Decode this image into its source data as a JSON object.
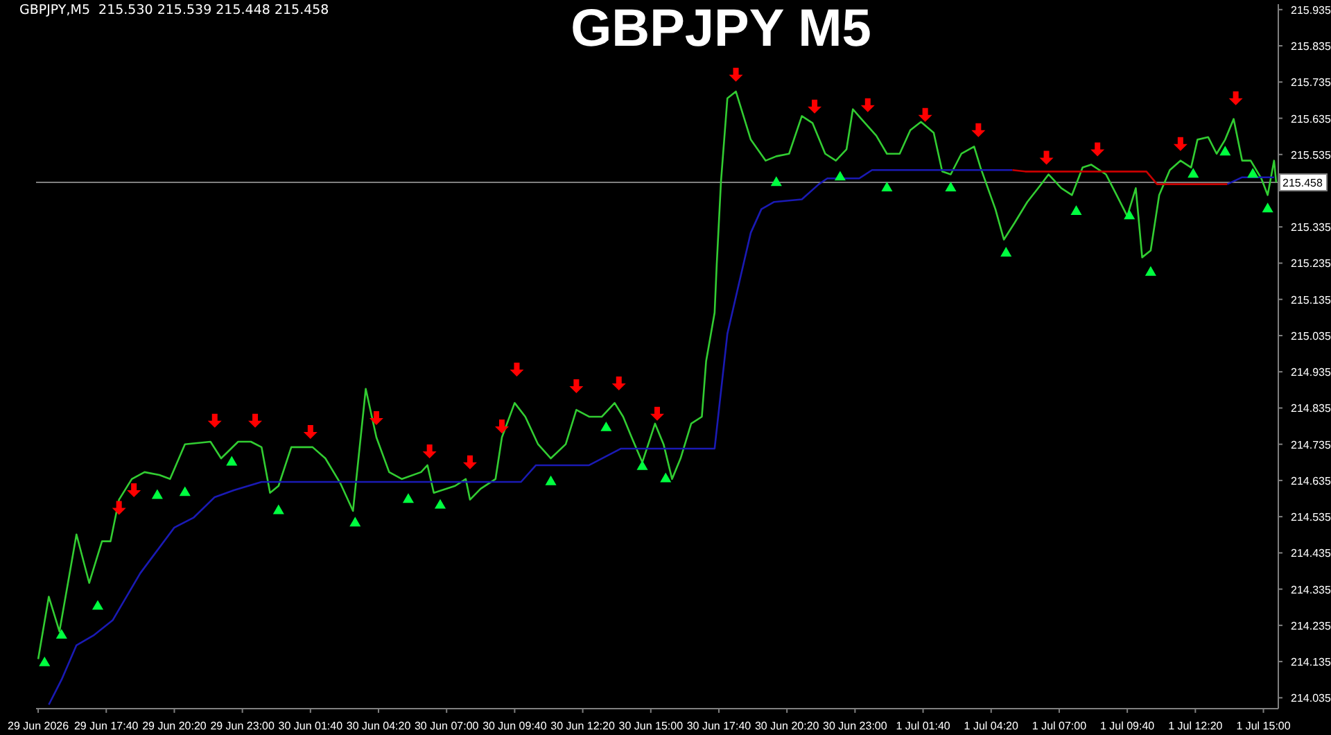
{
  "chart_data": {
    "type": "line",
    "title": "GBPJPY M5",
    "annotations": [
      "GBPJPY,M5  215.530 215.539 215.448 215.458"
    ],
    "xlim": [
      "2026-06-29T14:55",
      "2026-07-01T15:35"
    ],
    "xticks": [
      {
        "value": "2026-06-29T15:00",
        "label": "29 Jun 2026"
      },
      {
        "value": "2026-06-29T17:40",
        "label": "29 Jun 17:40"
      },
      {
        "value": "2026-06-29T20:20",
        "label": "29 Jun 20:20"
      },
      {
        "value": "2026-06-29T23:00",
        "label": "29 Jun 23:00"
      },
      {
        "value": "2026-06-30T01:40",
        "label": "30 Jun 01:40"
      },
      {
        "value": "2026-06-30T04:20",
        "label": "30 Jun 04:20"
      },
      {
        "value": "2026-06-30T07:00",
        "label": "30 Jun 07:00"
      },
      {
        "value": "2026-06-30T09:40",
        "label": "30 Jun 09:40"
      },
      {
        "value": "2026-06-30T12:20",
        "label": "30 Jun 12:20"
      },
      {
        "value": "2026-06-30T15:00",
        "label": "30 Jun 15:00"
      },
      {
        "value": "2026-06-30T17:40",
        "label": "30 Jun 17:40"
      },
      {
        "value": "2026-06-30T20:20",
        "label": "30 Jun 20:20"
      },
      {
        "value": "2026-06-30T23:00",
        "label": "30 Jun 23:00"
      },
      {
        "value": "2026-07-01T01:40",
        "label": "1 Jul 01:40"
      },
      {
        "value": "2026-07-01T04:20",
        "label": "1 Jul 04:20"
      },
      {
        "value": "2026-07-01T07:00",
        "label": "1 Jul 07:00"
      },
      {
        "value": "2026-07-01T09:40",
        "label": "1 Jul 09:40"
      },
      {
        "value": "2026-07-01T12:20",
        "label": "1 Jul 12:20"
      },
      {
        "value": "2026-07-01T15:00",
        "label": "1 Jul 15:00"
      }
    ],
    "ylim": [
      214.005,
      215.95
    ],
    "yticks": [
      214.035,
      214.135,
      214.235,
      214.335,
      214.435,
      214.535,
      214.635,
      214.735,
      214.835,
      214.935,
      215.035,
      215.135,
      215.235,
      215.335,
      {
        "value": 215.435,
        "label": null
      },
      215.535,
      215.635,
      215.735,
      215.835,
      215.935
    ],
    "ref_lines": [
      {
        "axis": "y",
        "value": 215.458,
        "label": "215.458",
        "color": "#808080"
      }
    ],
    "series": [
      {
        "color": "#32cd32",
        "x": [
          "2026-06-29T15:00",
          "2026-06-29T15:25",
          "2026-06-29T15:50",
          "2026-06-29T16:30",
          "2026-06-29T17:00",
          "2026-06-29T17:30",
          "2026-06-29T17:50",
          "2026-06-29T18:10",
          "2026-06-29T18:40",
          "2026-06-29T19:10",
          "2026-06-29T19:45",
          "2026-06-29T20:10",
          "2026-06-29T20:45",
          "2026-06-29T21:45",
          "2026-06-29T22:10",
          "2026-06-29T22:50",
          "2026-06-29T23:20",
          "2026-06-29T23:45",
          "2026-06-30T00:05",
          "2026-06-30T00:25",
          "2026-06-30T00:55",
          "2026-06-30T01:45",
          "2026-06-30T02:15",
          "2026-06-30T02:50",
          "2026-06-30T03:20",
          "2026-06-30T03:50",
          "2026-06-30T04:15",
          "2026-06-30T04:45",
          "2026-06-30T05:15",
          "2026-06-30T06:00",
          "2026-06-30T06:15",
          "2026-06-30T06:30",
          "2026-06-30T07:20",
          "2026-06-30T07:45",
          "2026-06-30T07:55",
          "2026-06-30T08:20",
          "2026-06-30T08:55",
          "2026-06-30T09:10",
          "2026-06-30T09:40",
          "2026-06-30T10:05",
          "2026-06-30T10:35",
          "2026-06-30T11:05",
          "2026-06-30T11:40",
          "2026-06-30T12:05",
          "2026-06-30T12:35",
          "2026-06-30T13:05",
          "2026-06-30T13:35",
          "2026-06-30T13:55",
          "2026-06-30T14:15",
          "2026-06-30T14:40",
          "2026-06-30T15:10",
          "2026-06-30T15:30",
          "2026-06-30T15:50",
          "2026-06-30T16:10",
          "2026-06-30T16:35",
          "2026-06-30T17:00",
          "2026-06-30T17:10",
          "2026-06-30T17:30",
          "2026-06-30T17:35",
          "2026-06-30T17:45",
          "2026-06-30T18:00",
          "2026-06-30T18:20",
          "2026-06-30T18:40",
          "2026-06-30T18:55",
          "2026-06-30T19:30",
          "2026-06-30T19:55",
          "2026-06-30T20:25",
          "2026-06-30T20:55",
          "2026-06-30T21:20",
          "2026-06-30T21:50",
          "2026-06-30T22:15",
          "2026-06-30T22:40",
          "2026-06-30T22:55",
          "2026-06-30T23:15",
          "2026-06-30T23:50",
          "2026-07-01T00:15",
          "2026-07-01T00:45",
          "2026-07-01T01:10",
          "2026-07-01T01:35",
          "2026-07-01T02:05",
          "2026-07-01T02:25",
          "2026-07-01T02:45",
          "2026-07-01T03:10",
          "2026-07-01T03:40",
          "2026-07-01T03:55",
          "2026-07-01T04:30",
          "2026-07-01T04:50",
          "2026-07-01T05:15",
          "2026-07-01T05:45",
          "2026-07-01T06:15",
          "2026-07-01T06:35",
          "2026-07-01T07:05",
          "2026-07-01T07:30",
          "2026-07-01T07:55",
          "2026-07-01T08:15",
          "2026-07-01T08:50",
          "2026-07-01T09:15",
          "2026-07-01T09:40",
          "2026-07-01T10:00",
          "2026-07-01T10:15",
          "2026-07-01T10:35",
          "2026-07-01T10:55",
          "2026-07-01T11:20",
          "2026-07-01T11:45",
          "2026-07-01T12:10",
          "2026-07-01T12:25",
          "2026-07-01T12:50",
          "2026-07-01T13:10",
          "2026-07-01T13:30",
          "2026-07-01T13:50",
          "2026-07-01T14:10",
          "2026-07-01T14:30",
          "2026-07-01T14:55",
          "2026-07-01T15:10",
          "2026-07-01T15:25",
          "2026-07-01T15:30"
        ],
        "values": [
          214.142,
          214.314,
          214.218,
          214.486,
          214.352,
          214.467,
          214.467,
          214.582,
          214.639,
          214.658,
          214.65,
          214.639,
          214.735,
          214.742,
          214.696,
          214.742,
          214.742,
          214.727,
          214.601,
          214.62,
          214.727,
          214.727,
          214.696,
          214.628,
          214.551,
          214.888,
          214.754,
          214.658,
          214.639,
          214.658,
          214.677,
          214.601,
          214.62,
          214.639,
          214.582,
          214.612,
          214.639,
          214.754,
          214.849,
          214.811,
          214.735,
          214.696,
          214.735,
          214.83,
          214.811,
          214.811,
          214.849,
          214.811,
          214.754,
          214.685,
          214.792,
          214.735,
          214.639,
          214.696,
          214.792,
          214.811,
          214.964,
          215.098,
          215.232,
          215.461,
          215.69,
          215.709,
          215.633,
          215.576,
          215.518,
          215.53,
          215.537,
          215.641,
          215.622,
          215.537,
          215.518,
          215.549,
          215.66,
          215.633,
          215.587,
          215.537,
          215.537,
          215.602,
          215.625,
          215.595,
          215.488,
          215.48,
          215.537,
          215.557,
          215.499,
          215.384,
          215.3,
          215.346,
          215.404,
          215.449,
          215.48,
          215.442,
          215.423,
          215.499,
          215.507,
          215.48,
          215.423,
          215.365,
          215.442,
          215.251,
          215.27,
          215.423,
          215.492,
          215.518,
          215.499,
          215.576,
          215.583,
          215.537,
          215.576,
          215.633,
          215.518,
          215.518,
          215.469,
          215.423,
          215.518,
          215.458
        ]
      },
      {
        "color": "#1a1ab4",
        "x": [
          "2026-06-29T15:25",
          "2026-06-29T15:55",
          "2026-06-29T16:30",
          "2026-06-29T17:10",
          "2026-06-29T17:55",
          "2026-06-29T19:00",
          "2026-06-29T20:20",
          "2026-06-29T21:05",
          "2026-06-29T21:55",
          "2026-06-29T22:40",
          "2026-06-29T23:45",
          "2026-06-30T09:55",
          "2026-06-30T10:30",
          "2026-06-30T12:35",
          "2026-06-30T13:50",
          "2026-06-30T17:30",
          "2026-06-30T18:00",
          "2026-06-30T18:30",
          "2026-06-30T18:55",
          "2026-06-30T19:20",
          "2026-06-30T19:50",
          "2026-06-30T20:55",
          "2026-06-30T21:35",
          "2026-06-30T21:55",
          "2026-06-30T23:10",
          "2026-06-30T23:40",
          "2026-07-01T05:10",
          "2026-07-01T09:00",
          "2026-07-01T13:35",
          "2026-07-01T14:10",
          "2026-07-01T15:25"
        ],
        "values": [
          214.016,
          214.085,
          214.18,
          214.207,
          214.249,
          214.379,
          214.505,
          214.532,
          214.589,
          214.608,
          214.631,
          214.631,
          214.677,
          214.677,
          214.723,
          214.723,
          215.04,
          215.193,
          215.319,
          215.384,
          215.404,
          215.411,
          215.453,
          215.469,
          215.469,
          215.492,
          215.492,
          null,
          215.453,
          215.472,
          215.472
        ]
      },
      {
        "color": "#c80000",
        "x": [
          "2026-07-01T05:10",
          "2026-07-01T05:40",
          "2026-07-01T10:25",
          "2026-07-01T10:50",
          "2026-07-01T13:35"
        ],
        "values": [
          215.492,
          215.488,
          215.488,
          215.453,
          215.453
        ]
      },
      {
        "type": "scatter",
        "color": "#00ff40",
        "marker": "triangle",
        "x": [
          "2026-06-29T15:15",
          "2026-06-29T15:55",
          "2026-06-29T17:20",
          "2026-06-29T19:40",
          "2026-06-29T20:45",
          "2026-06-29T22:35",
          "2026-06-30T00:25",
          "2026-06-30T03:25",
          "2026-06-30T05:30",
          "2026-06-30T06:45",
          "2026-06-30T11:05",
          "2026-06-30T13:15",
          "2026-06-30T14:40",
          "2026-06-30T15:35",
          "2026-06-30T19:55",
          "2026-06-30T22:25",
          "2026-07-01T00:15",
          "2026-07-01T02:45",
          "2026-07-01T04:55",
          "2026-07-01T07:40",
          "2026-07-01T09:45",
          "2026-07-01T10:35",
          "2026-07-01T12:15",
          "2026-07-01T13:30",
          "2026-07-01T14:35",
          "2026-07-01T15:10"
        ],
        "values": [
          214.131,
          214.207,
          214.287,
          214.593,
          214.601,
          214.685,
          214.551,
          214.517,
          214.582,
          214.566,
          214.631,
          214.78,
          214.673,
          214.639,
          215.457,
          215.472,
          215.442,
          215.442,
          215.262,
          215.377,
          215.365,
          215.209,
          215.48,
          215.541,
          215.48,
          215.384
        ]
      },
      {
        "type": "scatter",
        "color": "#ff0000",
        "marker": "triangle-down",
        "x": [
          "2026-06-29T18:10",
          "2026-06-29T18:45",
          "2026-06-29T21:55",
          "2026-06-29T23:30",
          "2026-06-30T01:40",
          "2026-06-30T04:15",
          "2026-06-30T06:20",
          "2026-06-30T07:55",
          "2026-06-30T09:10",
          "2026-06-30T09:45",
          "2026-06-30T12:05",
          "2026-06-30T13:45",
          "2026-06-30T15:15",
          "2026-06-30T18:20",
          "2026-06-30T21:25",
          "2026-06-30T23:30",
          "2026-07-01T01:45",
          "2026-07-01T03:50",
          "2026-07-01T06:30",
          "2026-07-01T08:30",
          "2026-07-01T11:45",
          "2026-07-01T13:55"
        ],
        "values": [
          214.559,
          214.608,
          214.8,
          214.8,
          214.769,
          214.807,
          214.715,
          214.685,
          214.784,
          214.941,
          214.895,
          214.903,
          214.819,
          215.755,
          215.667,
          215.671,
          215.644,
          215.602,
          215.526,
          215.549,
          215.564,
          215.69
        ]
      }
    ]
  }
}
